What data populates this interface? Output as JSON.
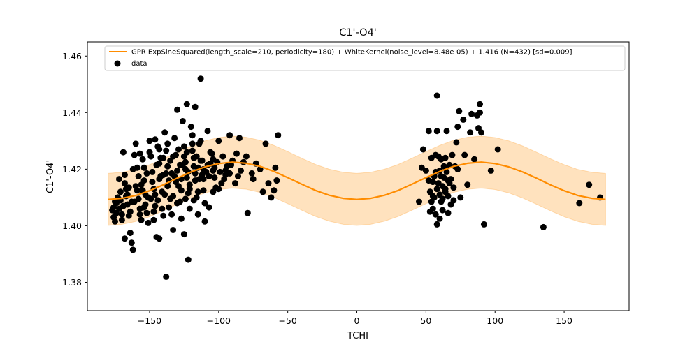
{
  "chart_data": {
    "type": "scatter",
    "title": "C1'-O4'",
    "xlabel": "TCHI",
    "ylabel": "C1'-O4'",
    "xlim": [
      -195,
      197
    ],
    "ylim": [
      1.37,
      1.465
    ],
    "x_ticks": [
      -150,
      -100,
      -50,
      0,
      50,
      100,
      150
    ],
    "x_tick_labels": [
      "−150",
      "−100",
      "−50",
      "0",
      "50",
      "100",
      "150"
    ],
    "y_ticks": [
      1.38,
      1.4,
      1.42,
      1.44,
      1.46
    ],
    "y_tick_labels": [
      "1.38",
      "1.40",
      "1.42",
      "1.44",
      "1.46"
    ],
    "grid": false,
    "legend_position": "top-right",
    "fit": {
      "name": "GPR ExpSineSquared(length_scale=210, periodicity=180) + WhiteKernel(noise_level=8.48e-05) + 1.416 (N=432) [sd=0.009]",
      "color": "#ff8c00",
      "band_color": "#ffd8a8",
      "x": [
        -180,
        -170,
        -160,
        -150,
        -140,
        -130,
        -120,
        -110,
        -100,
        -90,
        -80,
        -70,
        -60,
        -50,
        -40,
        -30,
        -20,
        -10,
        0,
        10,
        20,
        30,
        40,
        50,
        60,
        70,
        80,
        90,
        100,
        110,
        120,
        130,
        140,
        150,
        160,
        170,
        180
      ],
      "y": [
        1.4093,
        1.4097,
        1.4107,
        1.4124,
        1.4145,
        1.4168,
        1.419,
        1.4208,
        1.422,
        1.4225,
        1.4221,
        1.421,
        1.4192,
        1.417,
        1.4147,
        1.4125,
        1.4108,
        1.4097,
        1.4093,
        1.4097,
        1.4108,
        1.4125,
        1.4147,
        1.417,
        1.4192,
        1.421,
        1.4221,
        1.4225,
        1.422,
        1.4208,
        1.419,
        1.4168,
        1.4145,
        1.4124,
        1.4107,
        1.4097,
        1.4093
      ],
      "band_halfwidth": 0.0092
    },
    "scatter": {
      "name": "data",
      "color": "#000000",
      "points": [
        [
          -177,
          1.4055
        ],
        [
          -176,
          1.403
        ],
        [
          -175,
          1.4015
        ],
        [
          -174,
          1.408
        ],
        [
          -173,
          1.41
        ],
        [
          -172,
          1.406
        ],
        [
          -171,
          1.412
        ],
        [
          -170,
          1.404
        ],
        [
          -169,
          1.426
        ],
        [
          -168,
          1.418
        ],
        [
          -167,
          1.4105
        ],
        [
          -166,
          1.4075
        ],
        [
          -165,
          1.4035
        ],
        [
          -164,
          1.3975
        ],
        [
          -163,
          1.394
        ],
        [
          -162,
          1.3915
        ],
        [
          -161,
          1.425
        ],
        [
          -160,
          1.414
        ],
        [
          -159,
          1.4205
        ],
        [
          -158,
          1.4095
        ],
        [
          -157,
          1.406
        ],
        [
          -156,
          1.402
        ],
        [
          -155,
          1.4235
        ],
        [
          -154,
          1.416
        ],
        [
          -153,
          1.411
        ],
        [
          -152,
          1.4045
        ],
        [
          -151,
          1.401
        ],
        [
          -150,
          1.43
        ],
        [
          -149,
          1.4245
        ],
        [
          -148,
          1.419
        ],
        [
          -147,
          1.413
        ],
        [
          -146,
          1.407
        ],
        [
          -145,
          1.396
        ],
        [
          -144,
          1.428
        ],
        [
          -143,
          1.422
        ],
        [
          -142,
          1.4175
        ],
        [
          -141,
          1.412
        ],
        [
          -140,
          1.4035
        ],
        [
          -139,
          1.433
        ],
        [
          -138,
          1.4265
        ],
        [
          -137,
          1.421
        ],
        [
          -136,
          1.416
        ],
        [
          -135,
          1.4095
        ],
        [
          -134,
          1.404
        ],
        [
          -133,
          1.3985
        ],
        [
          -132,
          1.431
        ],
        [
          -131,
          1.425
        ],
        [
          -130,
          1.4195
        ],
        [
          -129,
          1.414
        ],
        [
          -128,
          1.4085
        ],
        [
          -127,
          1.4025
        ],
        [
          -126,
          1.437
        ],
        [
          -125,
          1.428
        ],
        [
          -124,
          1.4225
        ],
        [
          -123,
          1.417
        ],
        [
          -122,
          1.4115
        ],
        [
          -121,
          1.406
        ],
        [
          -120,
          1.435
        ],
        [
          -119,
          1.4265
        ],
        [
          -118,
          1.421
        ],
        [
          -117,
          1.416
        ],
        [
          -116,
          1.41
        ],
        [
          -115,
          1.404
        ],
        [
          -114,
          1.429
        ],
        [
          -113,
          1.423
        ],
        [
          -112,
          1.418
        ],
        [
          -111,
          1.4125
        ],
        [
          -110,
          1.408
        ],
        [
          -108,
          1.4335
        ],
        [
          -106,
          1.426
        ],
        [
          -104,
          1.4195
        ],
        [
          -102,
          1.4135
        ],
        [
          -100,
          1.43
        ],
        [
          -97,
          1.4245
        ],
        [
          -95,
          1.418
        ],
        [
          -92,
          1.432
        ],
        [
          -90,
          1.423
        ],
        [
          -88,
          1.415
        ],
        [
          -85,
          1.431
        ],
        [
          -82,
          1.4225
        ],
        [
          -79,
          1.4045
        ],
        [
          -68,
          1.412
        ],
        [
          -66,
          1.429
        ],
        [
          -64,
          1.415
        ],
        [
          -62,
          1.41
        ],
        [
          -60,
          1.4125
        ],
        [
          -58,
          1.416
        ],
        [
          -57,
          1.432
        ],
        [
          -95,
          1.4195
        ],
        [
          -98,
          1.415
        ],
        [
          -100,
          1.413
        ],
        [
          -104,
          1.412
        ],
        [
          -107,
          1.4065
        ],
        [
          -110,
          1.4015
        ],
        [
          -113,
          1.452
        ],
        [
          -117,
          1.442
        ],
        [
          -119,
          1.432
        ],
        [
          -123,
          1.443
        ],
        [
          -122,
          1.388
        ],
        [
          -125,
          1.397
        ],
        [
          -130,
          1.441
        ],
        [
          -138,
          1.382
        ],
        [
          -143,
          1.3955
        ],
        [
          -147,
          1.402
        ],
        [
          -168,
          1.3955
        ],
        [
          -170,
          1.402
        ],
        [
          -175,
          1.4085
        ],
        [
          -172,
          1.4165
        ],
        [
          -168,
          1.415
        ],
        [
          -165,
          1.4135
        ],
        [
          -162,
          1.42
        ],
        [
          -158,
          1.4175
        ],
        [
          -155,
          1.4125
        ],
        [
          -152,
          1.4185
        ],
        [
          -148,
          1.4155
        ],
        [
          -145,
          1.4215
        ],
        [
          -142,
          1.424
        ],
        [
          -138,
          1.4185
        ],
        [
          -135,
          1.423
        ],
        [
          -132,
          1.4175
        ],
        [
          -128,
          1.4215
        ],
        [
          -125,
          1.4245
        ],
        [
          -122,
          1.419
        ],
        [
          -118,
          1.424
        ],
        [
          -115,
          1.4205
        ],
        [
          -112,
          1.423
        ],
        [
          -108,
          1.4215
        ],
        [
          -105,
          1.4255
        ],
        [
          -103,
          1.417
        ],
        [
          -101,
          1.4225
        ],
        [
          -166,
          1.411
        ],
        [
          -163,
          1.4085
        ],
        [
          -159,
          1.4125
        ],
        [
          -156,
          1.4145
        ],
        [
          -153,
          1.4075
        ],
        [
          -149,
          1.4095
        ],
        [
          -146,
          1.411
        ],
        [
          -143,
          1.4165
        ],
        [
          -140,
          1.418
        ],
        [
          -137,
          1.414
        ],
        [
          -134,
          1.4185
        ],
        [
          -131,
          1.4155
        ],
        [
          -127,
          1.4165
        ],
        [
          -124,
          1.42
        ],
        [
          -121,
          1.4145
        ],
        [
          -117,
          1.4185
        ],
        [
          -114,
          1.4165
        ],
        [
          -111,
          1.42
        ],
        [
          -107,
          1.4175
        ],
        [
          -104,
          1.4235
        ],
        [
          -176,
          1.4065
        ],
        [
          -174,
          1.4045
        ],
        [
          -171,
          1.409
        ],
        [
          -169,
          1.407
        ],
        [
          -167,
          1.413
        ],
        [
          -164,
          1.405
        ],
        [
          -161,
          1.4085
        ],
        [
          -157,
          1.404
        ],
        [
          -154,
          1.4065
        ],
        [
          -151,
          1.41
        ],
        [
          -147,
          1.405
        ],
        [
          -144,
          1.409
        ],
        [
          -141,
          1.406
        ],
        [
          -139,
          1.411
        ],
        [
          -136,
          1.4065
        ],
        [
          -133,
          1.4105
        ],
        [
          -130,
          1.408
        ],
        [
          -127,
          1.4125
        ],
        [
          -124,
          1.4095
        ],
        [
          -121,
          1.413
        ],
        [
          -118,
          1.409
        ],
        [
          -115,
          1.412
        ],
        [
          -160,
          1.429
        ],
        [
          -157,
          1.4255
        ],
        [
          -154,
          1.4205
        ],
        [
          -150,
          1.426
        ],
        [
          -146,
          1.4305
        ],
        [
          -143,
          1.427
        ],
        [
          -140,
          1.424
        ],
        [
          -137,
          1.429
        ],
        [
          -133,
          1.4245
        ],
        [
          -129,
          1.427
        ],
        [
          -126,
          1.4215
        ],
        [
          -123,
          1.426
        ],
        [
          -119,
          1.429
        ],
        [
          -116,
          1.4245
        ],
        [
          -113,
          1.43
        ],
        [
          -111,
          1.4165
        ],
        [
          -109,
          1.419
        ],
        [
          -106,
          1.422
        ],
        [
          -103,
          1.4205
        ],
        [
          -99,
          1.419
        ],
        [
          -94,
          1.421
        ],
        [
          -91,
          1.4215
        ],
        [
          -87,
          1.4255
        ],
        [
          -84,
          1.4195
        ],
        [
          -80,
          1.4245
        ],
        [
          -76,
          1.4185
        ],
        [
          -73,
          1.422
        ],
        [
          -70,
          1.42
        ],
        [
          -96,
          1.4165
        ],
        [
          -92,
          1.4185
        ],
        [
          -86,
          1.4175
        ],
        [
          -75,
          1.4165
        ],
        [
          -59,
          1.4205
        ],
        [
          45,
          1.4085
        ],
        [
          47,
          1.4205
        ],
        [
          48,
          1.427
        ],
        [
          50,
          1.4195
        ],
        [
          52,
          1.416
        ],
        [
          52,
          1.4335
        ],
        [
          53,
          1.405
        ],
        [
          53,
          1.412
        ],
        [
          54,
          1.4085
        ],
        [
          55,
          1.4155
        ],
        [
          55,
          1.406
        ],
        [
          56,
          1.41
        ],
        [
          56,
          1.4175
        ],
        [
          57,
          1.425
        ],
        [
          57,
          1.404
        ],
        [
          58,
          1.446
        ],
        [
          58,
          1.4335
        ],
        [
          58,
          1.413
        ],
        [
          58,
          1.4005
        ],
        [
          59,
          1.4245
        ],
        [
          59,
          1.415
        ],
        [
          60,
          1.4195
        ],
        [
          60,
          1.411
        ],
        [
          60,
          1.4025
        ],
        [
          61,
          1.4235
        ],
        [
          61,
          1.4085
        ],
        [
          62,
          1.414
        ],
        [
          62,
          1.4055
        ],
        [
          63,
          1.421
        ],
        [
          63,
          1.417
        ],
        [
          64,
          1.412
        ],
        [
          64,
          1.424
        ],
        [
          65,
          1.4335
        ],
        [
          65,
          1.419
        ],
        [
          66,
          1.4105
        ],
        [
          66,
          1.4045
        ],
        [
          67,
          1.415
        ],
        [
          67,
          1.4215
        ],
        [
          68,
          1.4075
        ],
        [
          69,
          1.425
        ],
        [
          70,
          1.4135
        ],
        [
          70,
          1.409
        ],
        [
          72,
          1.4295
        ],
        [
          73,
          1.435
        ],
        [
          73,
          1.42
        ],
        [
          74,
          1.4405
        ],
        [
          75,
          1.41
        ],
        [
          77,
          1.4375
        ],
        [
          78,
          1.425
        ],
        [
          80,
          1.4145
        ],
        [
          82,
          1.433
        ],
        [
          83,
          1.4395
        ],
        [
          85,
          1.4235
        ],
        [
          87,
          1.439
        ],
        [
          88,
          1.4345
        ],
        [
          89,
          1.44
        ],
        [
          89,
          1.443
        ],
        [
          90,
          1.433
        ],
        [
          92,
          1.4005
        ],
        [
          97,
          1.4195
        ],
        [
          102,
          1.427
        ],
        [
          54,
          1.424
        ],
        [
          57,
          1.419
        ],
        [
          61,
          1.4175
        ],
        [
          64,
          1.413
        ],
        [
          68,
          1.4165
        ],
        [
          71,
          1.421
        ],
        [
          55,
          1.4105
        ],
        [
          62,
          1.4095
        ],
        [
          66,
          1.416
        ],
        [
          135,
          1.3995
        ],
        [
          161,
          1.408
        ],
        [
          168,
          1.4145
        ],
        [
          176,
          1.41
        ]
      ]
    }
  }
}
